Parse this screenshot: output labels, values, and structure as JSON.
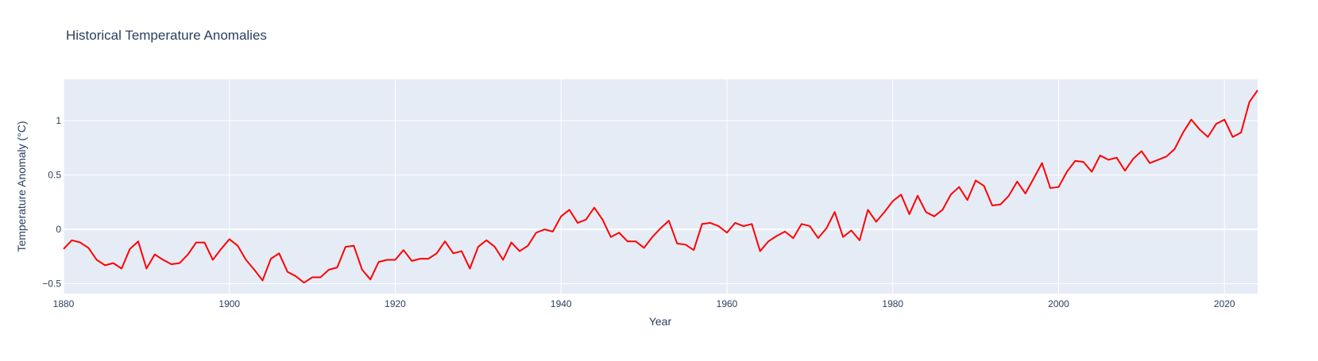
{
  "chart_data": {
    "type": "line",
    "title": "Historical Temperature Anomalies",
    "xlabel": "Year",
    "ylabel": "Temperature Anomaly (°C)",
    "xlim": [
      1880,
      2024
    ],
    "ylim": [
      -0.59,
      1.38
    ],
    "x_ticks": [
      1880,
      1900,
      1920,
      1940,
      1960,
      1980,
      2000,
      2020
    ],
    "y_ticks": [
      -0.5,
      0,
      0.5,
      1
    ],
    "y_tick_labels": [
      "−0.5",
      "0",
      "0.5",
      "1"
    ],
    "grid": true,
    "legend": "none",
    "colors": {
      "line": "#ff0000",
      "plot_bg": "#e5ecf6",
      "grid": "#ffffff",
      "text": "#2a3f5f"
    },
    "series": [
      {
        "x": [
          1880,
          1881,
          1882,
          1883,
          1884,
          1885,
          1886,
          1887,
          1888,
          1889,
          1890,
          1891,
          1892,
          1893,
          1894,
          1895,
          1896,
          1897,
          1898,
          1899,
          1900,
          1901,
          1902,
          1903,
          1904,
          1905,
          1906,
          1907,
          1908,
          1909,
          1910,
          1911,
          1912,
          1913,
          1914,
          1915,
          1916,
          1917,
          1918,
          1919,
          1920,
          1921,
          1922,
          1923,
          1924,
          1925,
          1926,
          1927,
          1928,
          1929,
          1930,
          1931,
          1932,
          1933,
          1934,
          1935,
          1936,
          1937,
          1938,
          1939,
          1940,
          1941,
          1942,
          1943,
          1944,
          1945,
          1946,
          1947,
          1948,
          1949,
          1950,
          1951,
          1952,
          1953,
          1954,
          1955,
          1956,
          1957,
          1958,
          1959,
          1960,
          1961,
          1962,
          1963,
          1964,
          1965,
          1966,
          1967,
          1968,
          1969,
          1970,
          1971,
          1972,
          1973,
          1974,
          1975,
          1976,
          1977,
          1978,
          1979,
          1980,
          1981,
          1982,
          1983,
          1984,
          1985,
          1986,
          1987,
          1988,
          1989,
          1990,
          1991,
          1992,
          1993,
          1994,
          1995,
          1996,
          1997,
          1998,
          1999,
          2000,
          2001,
          2002,
          2003,
          2004,
          2005,
          2006,
          2007,
          2008,
          2009,
          2010,
          2011,
          2012,
          2013,
          2014,
          2015,
          2016,
          2017,
          2018,
          2019,
          2020,
          2021,
          2022,
          2023,
          2024
        ],
        "values": [
          -0.18,
          -0.1,
          -0.12,
          -0.17,
          -0.28,
          -0.33,
          -0.31,
          -0.36,
          -0.18,
          -0.11,
          -0.36,
          -0.23,
          -0.28,
          -0.32,
          -0.31,
          -0.23,
          -0.12,
          -0.12,
          -0.28,
          -0.18,
          -0.09,
          -0.15,
          -0.28,
          -0.37,
          -0.47,
          -0.27,
          -0.22,
          -0.39,
          -0.43,
          -0.49,
          -0.44,
          -0.44,
          -0.37,
          -0.35,
          -0.16,
          -0.15,
          -0.37,
          -0.46,
          -0.3,
          -0.28,
          -0.28,
          -0.19,
          -0.29,
          -0.27,
          -0.27,
          -0.22,
          -0.11,
          -0.22,
          -0.2,
          -0.36,
          -0.16,
          -0.1,
          -0.16,
          -0.28,
          -0.12,
          -0.2,
          -0.15,
          -0.03,
          0.0,
          -0.02,
          0.12,
          0.18,
          0.06,
          0.09,
          0.2,
          0.09,
          -0.07,
          -0.03,
          -0.11,
          -0.11,
          -0.17,
          -0.07,
          0.01,
          0.08,
          -0.13,
          -0.14,
          -0.19,
          0.05,
          0.06,
          0.03,
          -0.03,
          0.06,
          0.03,
          0.05,
          -0.2,
          -0.11,
          -0.06,
          -0.02,
          -0.08,
          0.05,
          0.03,
          -0.08,
          0.01,
          0.16,
          -0.07,
          -0.01,
          -0.1,
          0.18,
          0.07,
          0.16,
          0.26,
          0.32,
          0.14,
          0.31,
          0.16,
          0.12,
          0.18,
          0.32,
          0.39,
          0.27,
          0.45,
          0.4,
          0.22,
          0.23,
          0.31,
          0.44,
          0.33,
          0.47,
          0.61,
          0.38,
          0.39,
          0.53,
          0.63,
          0.62,
          0.53,
          0.68,
          0.64,
          0.66,
          0.54,
          0.65,
          0.72,
          0.61,
          0.64,
          0.67,
          0.74,
          0.89,
          1.01,
          0.92,
          0.85,
          0.97,
          1.01,
          0.85,
          0.89,
          1.17,
          1.28
        ]
      }
    ]
  }
}
